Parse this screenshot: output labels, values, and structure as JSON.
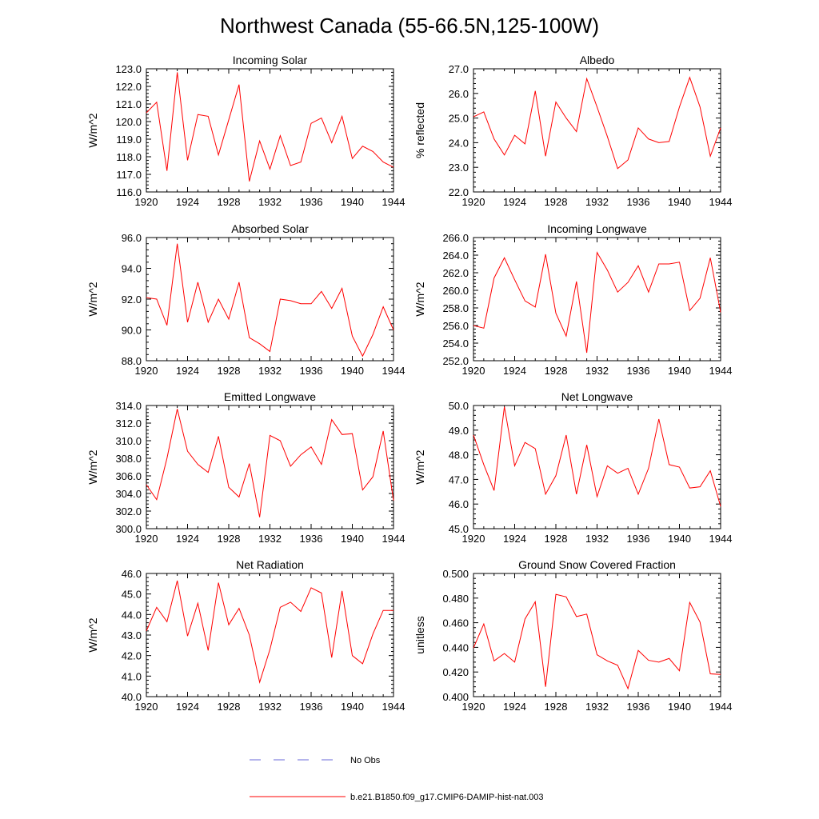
{
  "figure": {
    "title": "Northwest Canada (55-66.5N,125-100W)",
    "legend": [
      {
        "label": "No Obs",
        "color": "#6a6ad8",
        "style": "dashed"
      },
      {
        "label": "b.e21.B1850.f09_g17.CMIP6-DAMIP-hist-nat.003",
        "color": "#ff0000",
        "style": "solid"
      }
    ]
  },
  "chart_data": [
    {
      "type": "line",
      "title": "Incoming Solar",
      "xlabel": "",
      "ylabel": "W/m^2",
      "xlim": [
        1920,
        1944
      ],
      "xticks": [
        "1920",
        "1924",
        "1928",
        "1932",
        "1936",
        "1940",
        "1944"
      ],
      "ylim": [
        116,
        123
      ],
      "yticks": [
        "116.0",
        "117.0",
        "118.0",
        "119.0",
        "120.0",
        "121.0",
        "122.0",
        "123.0"
      ],
      "series": [
        {
          "color": "#ff0000",
          "x": [
            1920,
            1921,
            1922,
            1923,
            1924,
            1925,
            1926,
            1927,
            1928,
            1929,
            1930,
            1931,
            1932,
            1933,
            1934,
            1935,
            1936,
            1937,
            1938,
            1939,
            1940,
            1941,
            1942,
            1943,
            1944
          ],
          "values": [
            120.5,
            121.1,
            117.2,
            122.8,
            117.8,
            120.4,
            120.3,
            118.1,
            120.1,
            122.1,
            116.6,
            118.9,
            117.3,
            119.2,
            117.5,
            117.7,
            119.9,
            120.2,
            118.8,
            120.3,
            117.9,
            118.6,
            118.3,
            117.7,
            117.4
          ]
        }
      ]
    },
    {
      "type": "line",
      "title": "Albedo",
      "xlabel": "",
      "ylabel": "% reflected",
      "xlim": [
        1920,
        1944
      ],
      "xticks": [
        "1920",
        "1924",
        "1928",
        "1932",
        "1936",
        "1940",
        "1944"
      ],
      "ylim": [
        22,
        27
      ],
      "yticks": [
        "22.0",
        "23.0",
        "24.0",
        "25.0",
        "26.0",
        "27.0"
      ],
      "series": [
        {
          "color": "#ff0000",
          "x": [
            1920,
            1921,
            1922,
            1923,
            1924,
            1925,
            1926,
            1927,
            1928,
            1929,
            1930,
            1931,
            1932,
            1933,
            1934,
            1935,
            1936,
            1937,
            1938,
            1939,
            1940,
            1941,
            1942,
            1943,
            1944
          ],
          "values": [
            25.05,
            25.25,
            24.15,
            23.5,
            24.3,
            23.95,
            26.1,
            23.45,
            25.65,
            25.0,
            24.45,
            26.6,
            25.45,
            24.25,
            22.95,
            23.3,
            24.6,
            24.15,
            24.0,
            24.05,
            25.45,
            26.65,
            25.45,
            23.45,
            24.6
          ]
        }
      ]
    },
    {
      "type": "line",
      "title": "Absorbed Solar",
      "xlabel": "",
      "ylabel": "W/m^2",
      "xlim": [
        1920,
        1944
      ],
      "xticks": [
        "1920",
        "1924",
        "1928",
        "1932",
        "1936",
        "1940",
        "1944"
      ],
      "ylim": [
        88,
        96
      ],
      "yticks": [
        "88.0",
        "90.0",
        "92.0",
        "94.0",
        "96.0"
      ],
      "series": [
        {
          "color": "#ff0000",
          "x": [
            1920,
            1921,
            1922,
            1923,
            1924,
            1925,
            1926,
            1927,
            1928,
            1929,
            1930,
            1931,
            1932,
            1933,
            1934,
            1935,
            1936,
            1937,
            1938,
            1939,
            1940,
            1941,
            1942,
            1943,
            1944
          ],
          "values": [
            92.1,
            92.0,
            90.3,
            95.6,
            90.5,
            93.1,
            90.5,
            92.0,
            90.7,
            93.1,
            89.5,
            89.1,
            88.6,
            92.0,
            91.9,
            91.7,
            91.7,
            92.5,
            91.4,
            92.7,
            89.6,
            88.3,
            89.7,
            91.5,
            90.0
          ]
        }
      ]
    },
    {
      "type": "line",
      "title": "Incoming Longwave",
      "xlabel": "",
      "ylabel": "W/m^2",
      "xlim": [
        1920,
        1944
      ],
      "xticks": [
        "1920",
        "1924",
        "1928",
        "1932",
        "1936",
        "1940",
        "1944"
      ],
      "ylim": [
        252,
        266
      ],
      "yticks": [
        "252.0",
        "254.0",
        "256.0",
        "258.0",
        "260.0",
        "262.0",
        "264.0",
        "266.0"
      ],
      "series": [
        {
          "color": "#ff0000",
          "x": [
            1920,
            1921,
            1922,
            1923,
            1924,
            1925,
            1926,
            1927,
            1928,
            1929,
            1930,
            1931,
            1932,
            1933,
            1934,
            1935,
            1936,
            1937,
            1938,
            1939,
            1940,
            1941,
            1942,
            1943,
            1944
          ],
          "values": [
            256.0,
            255.7,
            261.4,
            263.7,
            261.2,
            258.8,
            258.1,
            264.1,
            257.4,
            254.8,
            261.0,
            252.9,
            264.3,
            262.3,
            259.8,
            260.9,
            262.8,
            259.8,
            263.0,
            263.0,
            263.2,
            257.7,
            259.1,
            263.7,
            257.5
          ]
        }
      ]
    },
    {
      "type": "line",
      "title": "Emitted Longwave",
      "xlabel": "",
      "ylabel": "W/m^2",
      "xlim": [
        1920,
        1944
      ],
      "xticks": [
        "1920",
        "1924",
        "1928",
        "1932",
        "1936",
        "1940",
        "1944"
      ],
      "ylim": [
        300,
        314
      ],
      "yticks": [
        "300.0",
        "302.0",
        "304.0",
        "306.0",
        "308.0",
        "310.0",
        "312.0",
        "314.0"
      ],
      "series": [
        {
          "color": "#ff0000",
          "x": [
            1920,
            1921,
            1922,
            1923,
            1924,
            1925,
            1926,
            1927,
            1928,
            1929,
            1930,
            1931,
            1932,
            1933,
            1934,
            1935,
            1936,
            1937,
            1938,
            1939,
            1940,
            1941,
            1942,
            1943,
            1944
          ],
          "values": [
            305.0,
            303.3,
            308.0,
            313.6,
            308.8,
            307.3,
            306.4,
            310.5,
            304.7,
            303.6,
            307.4,
            301.3,
            310.6,
            310.0,
            307.1,
            308.4,
            309.3,
            307.3,
            312.4,
            310.7,
            310.8,
            304.4,
            305.9,
            311.1,
            303.2
          ]
        }
      ]
    },
    {
      "type": "line",
      "title": "Net Longwave",
      "xlabel": "",
      "ylabel": "W/m^2",
      "xlim": [
        1920,
        1944
      ],
      "xticks": [
        "1920",
        "1924",
        "1928",
        "1932",
        "1936",
        "1940",
        "1944"
      ],
      "ylim": [
        45,
        50
      ],
      "yticks": [
        "45.0",
        "46.0",
        "47.0",
        "48.0",
        "49.0",
        "50.0"
      ],
      "series": [
        {
          "color": "#ff0000",
          "x": [
            1920,
            1921,
            1922,
            1923,
            1924,
            1925,
            1926,
            1927,
            1928,
            1929,
            1930,
            1931,
            1932,
            1933,
            1934,
            1935,
            1936,
            1937,
            1938,
            1939,
            1940,
            1941,
            1942,
            1943,
            1944
          ],
          "values": [
            48.8,
            47.6,
            46.55,
            49.95,
            47.55,
            48.5,
            48.25,
            46.4,
            47.15,
            48.8,
            46.4,
            48.4,
            46.3,
            47.55,
            47.25,
            47.45,
            46.4,
            47.45,
            49.45,
            47.6,
            47.5,
            46.65,
            46.7,
            47.35,
            45.9
          ]
        }
      ]
    },
    {
      "type": "line",
      "title": "Net Radiation",
      "xlabel": "",
      "ylabel": "W/m^2",
      "xlim": [
        1920,
        1944
      ],
      "xticks": [
        "1920",
        "1924",
        "1928",
        "1932",
        "1936",
        "1940",
        "1944"
      ],
      "ylim": [
        40,
        46
      ],
      "yticks": [
        "40.0",
        "41.0",
        "42.0",
        "43.0",
        "44.0",
        "45.0",
        "46.0"
      ],
      "series": [
        {
          "color": "#ff0000",
          "x": [
            1920,
            1921,
            1922,
            1923,
            1924,
            1925,
            1926,
            1927,
            1928,
            1929,
            1930,
            1931,
            1932,
            1933,
            1934,
            1935,
            1936,
            1937,
            1938,
            1939,
            1940,
            1941,
            1942,
            1943,
            1944
          ],
          "values": [
            43.2,
            44.35,
            43.65,
            45.65,
            42.95,
            44.55,
            42.25,
            45.55,
            43.5,
            44.3,
            43.0,
            40.7,
            42.3,
            44.35,
            44.6,
            44.15,
            45.3,
            45.05,
            41.9,
            45.15,
            42.0,
            41.6,
            43.05,
            44.2,
            44.2
          ]
        }
      ]
    },
    {
      "type": "line",
      "title": "Ground Snow Covered Fraction",
      "xlabel": "",
      "ylabel": "unitless",
      "xlim": [
        1920,
        1944
      ],
      "xticks": [
        "1920",
        "1924",
        "1928",
        "1932",
        "1936",
        "1940",
        "1944"
      ],
      "ylim": [
        0.4,
        0.5
      ],
      "yticks": [
        "0.400",
        "0.420",
        "0.440",
        "0.460",
        "0.480",
        "0.500"
      ],
      "series": [
        {
          "color": "#ff0000",
          "x": [
            1920,
            1921,
            1922,
            1923,
            1924,
            1925,
            1926,
            1927,
            1928,
            1929,
            1930,
            1931,
            1932,
            1933,
            1934,
            1935,
            1936,
            1937,
            1938,
            1939,
            1940,
            1941,
            1942,
            1943,
            1944
          ],
          "values": [
            0.4395,
            0.459,
            0.429,
            0.435,
            0.428,
            0.463,
            0.477,
            0.408,
            0.483,
            0.481,
            0.465,
            0.467,
            0.434,
            0.429,
            0.4255,
            0.4065,
            0.4375,
            0.4295,
            0.428,
            0.431,
            0.421,
            0.4765,
            0.4605,
            0.4185,
            0.418
          ]
        }
      ]
    }
  ]
}
